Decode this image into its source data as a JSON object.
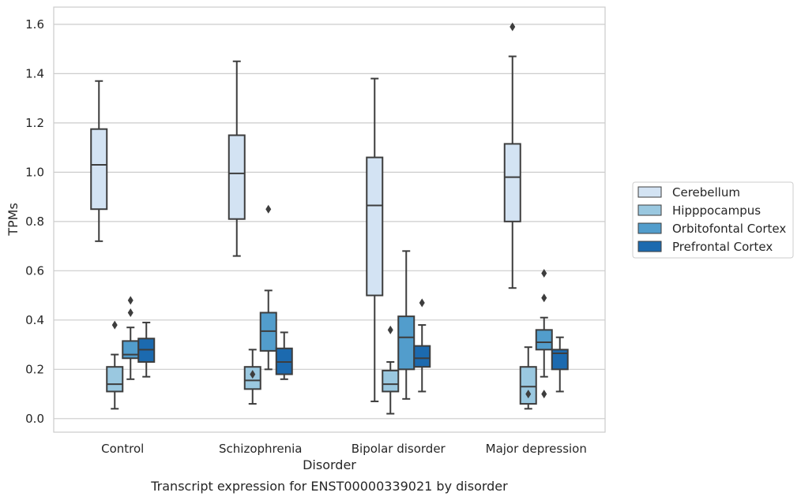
{
  "chart_data": {
    "type": "box",
    "caption": "Transcript expression for ENST00000339021 by disorder",
    "xlabel": "Disorder",
    "ylabel": "TPMs",
    "ylim": [
      -0.055,
      1.67
    ],
    "yticks": [
      0.0,
      0.2,
      0.4,
      0.6,
      0.8,
      1.0,
      1.2,
      1.4,
      1.6
    ],
    "ytick_labels": [
      "0.0",
      "0.2",
      "0.4",
      "0.6",
      "0.8",
      "1.0",
      "1.2",
      "1.4",
      "1.6"
    ],
    "grid": "horizontal",
    "legend_position": "right",
    "categories": [
      "Control",
      "Schizophrenia",
      "Bipolar disorder",
      "Major depression"
    ],
    "series": [
      {
        "name": "Cerebellum",
        "color": "#d3e3f3",
        "boxes": [
          {
            "whisker_low": 0.72,
            "q1": 0.85,
            "median": 1.03,
            "q3": 1.175,
            "whisker_high": 1.37,
            "outliers": []
          },
          {
            "whisker_low": 0.66,
            "q1": 0.81,
            "median": 0.995,
            "q3": 1.15,
            "whisker_high": 1.45,
            "outliers": []
          },
          {
            "whisker_low": 0.07,
            "q1": 0.5,
            "median": 0.865,
            "q3": 1.06,
            "whisker_high": 1.38,
            "outliers": []
          },
          {
            "whisker_low": 0.53,
            "q1": 0.8,
            "median": 0.98,
            "q3": 1.115,
            "whisker_high": 1.47,
            "outliers": [
              1.59
            ]
          }
        ]
      },
      {
        "name": "Hipppocampus",
        "color": "#9ac8e0",
        "boxes": [
          {
            "whisker_low": 0.04,
            "q1": 0.11,
            "median": 0.14,
            "q3": 0.21,
            "whisker_high": 0.26,
            "outliers": [
              0.38
            ]
          },
          {
            "whisker_low": 0.06,
            "q1": 0.12,
            "median": 0.155,
            "q3": 0.21,
            "whisker_high": 0.28,
            "outliers": [
              0.18
            ]
          },
          {
            "whisker_low": 0.02,
            "q1": 0.11,
            "median": 0.14,
            "q3": 0.195,
            "whisker_high": 0.23,
            "outliers": [
              0.36
            ]
          },
          {
            "whisker_low": 0.04,
            "q1": 0.06,
            "median": 0.13,
            "q3": 0.21,
            "whisker_high": 0.29,
            "outliers": [
              0.1
            ]
          }
        ]
      },
      {
        "name": "Orbitofontal Cortex",
        "color": "#529dcc",
        "boxes": [
          {
            "whisker_low": 0.16,
            "q1": 0.245,
            "median": 0.26,
            "q3": 0.315,
            "whisker_high": 0.37,
            "outliers": [
              0.43,
              0.48
            ]
          },
          {
            "whisker_low": 0.2,
            "q1": 0.275,
            "median": 0.355,
            "q3": 0.43,
            "whisker_high": 0.52,
            "outliers": [
              0.85
            ]
          },
          {
            "whisker_low": 0.08,
            "q1": 0.2,
            "median": 0.33,
            "q3": 0.415,
            "whisker_high": 0.68,
            "outliers": []
          },
          {
            "whisker_low": 0.17,
            "q1": 0.28,
            "median": 0.31,
            "q3": 0.36,
            "whisker_high": 0.41,
            "outliers": [
              0.1,
              0.49,
              0.59
            ]
          }
        ]
      },
      {
        "name": "Prefrontal Cortex",
        "color": "#1c6aaf",
        "boxes": [
          {
            "whisker_low": 0.17,
            "q1": 0.23,
            "median": 0.28,
            "q3": 0.325,
            "whisker_high": 0.39,
            "outliers": []
          },
          {
            "whisker_low": 0.16,
            "q1": 0.18,
            "median": 0.23,
            "q3": 0.285,
            "whisker_high": 0.35,
            "outliers": []
          },
          {
            "whisker_low": 0.11,
            "q1": 0.21,
            "median": 0.245,
            "q3": 0.295,
            "whisker_high": 0.38,
            "outliers": [
              0.47
            ]
          },
          {
            "whisker_low": 0.11,
            "q1": 0.2,
            "median": 0.265,
            "q3": 0.28,
            "whisker_high": 0.33,
            "outliers": []
          }
        ]
      }
    ]
  }
}
